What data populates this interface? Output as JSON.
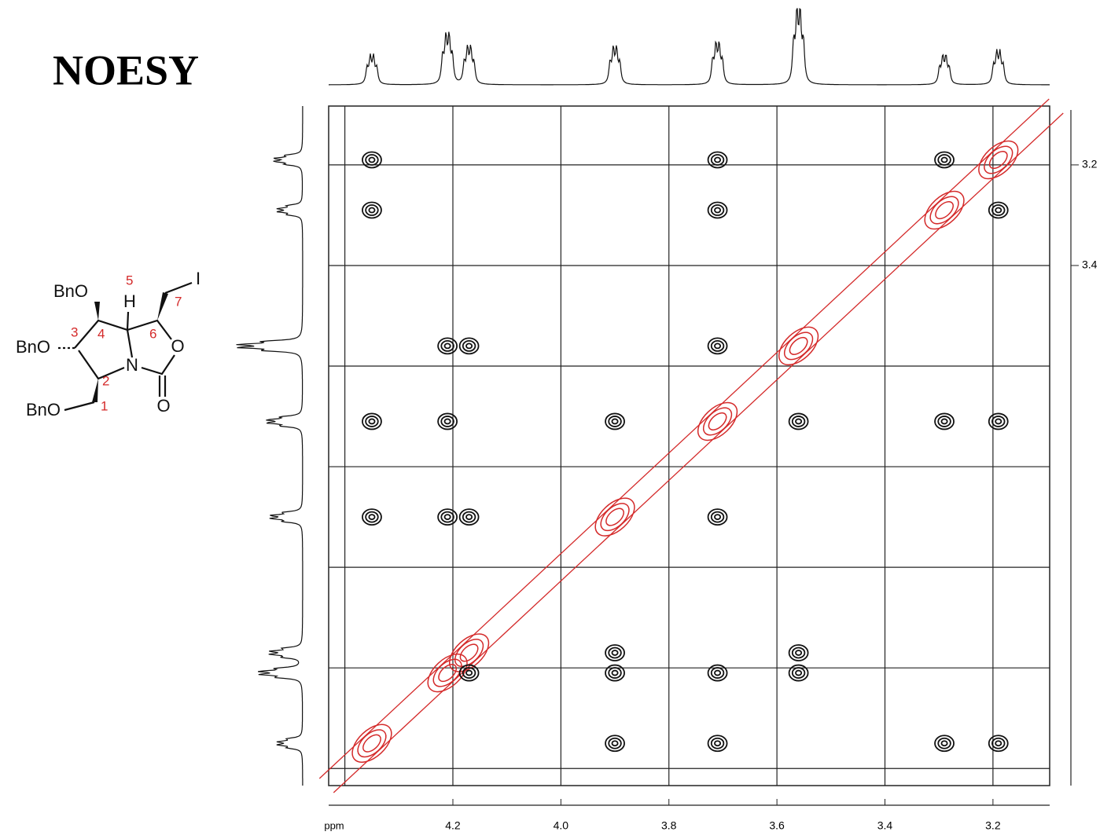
{
  "chart_data": {
    "type": "nmr2d",
    "title": "NOESY",
    "x_label": "ppm",
    "xlim": [
      4.43,
      3.095
    ],
    "ylim": [
      3.083,
      4.434
    ],
    "xticks": [
      4.2,
      {
        "value": 4,
        "label": "4.0"
      },
      3.8,
      3.6,
      3.4,
      3.2
    ],
    "yticks": [
      3.2,
      3.4
    ],
    "xgrid": [
      4.4,
      4.2,
      4,
      3.8,
      3.6,
      3.4,
      3.2
    ],
    "ygrid": [
      3.2,
      3.4,
      3.6,
      3.8,
      4,
      4.2,
      4.4
    ],
    "diagonal_peaks": {
      "color": "#d42a2a",
      "shifts": [
        4.35,
        4.21,
        4.17,
        3.9,
        3.71,
        3.56,
        3.29,
        3.19
      ],
      "intensities": [
        35,
        60,
        45,
        45,
        50,
        90,
        35,
        40
      ]
    },
    "cross_peaks": {
      "color": "#111111",
      "x": [
        4.35,
        3.71,
        3.29,
        4.35,
        3.71,
        3.19,
        4.21,
        4.17,
        3.71,
        4.35,
        4.21,
        3.9,
        3.56,
        3.29,
        3.19,
        4.35,
        4.21,
        4.17,
        3.71,
        3.9,
        3.56,
        4.17,
        3.9,
        3.71,
        3.56,
        3.9,
        3.71,
        3.29,
        3.19
      ],
      "y": [
        3.19,
        3.19,
        3.19,
        3.29,
        3.29,
        3.29,
        3.56,
        3.56,
        3.56,
        3.71,
        3.71,
        3.71,
        3.71,
        3.71,
        3.71,
        3.9,
        3.9,
        3.9,
        3.9,
        4.17,
        4.17,
        4.21,
        4.21,
        4.21,
        4.21,
        4.35,
        4.35,
        4.35,
        4.35
      ]
    }
  },
  "structure": {
    "substituents": [
      "BnO",
      "BnO",
      "BnO"
    ],
    "atoms": [
      "H",
      "N",
      "O",
      "O",
      "I"
    ],
    "locants": [
      1,
      2,
      3,
      4,
      5,
      6,
      7
    ]
  }
}
